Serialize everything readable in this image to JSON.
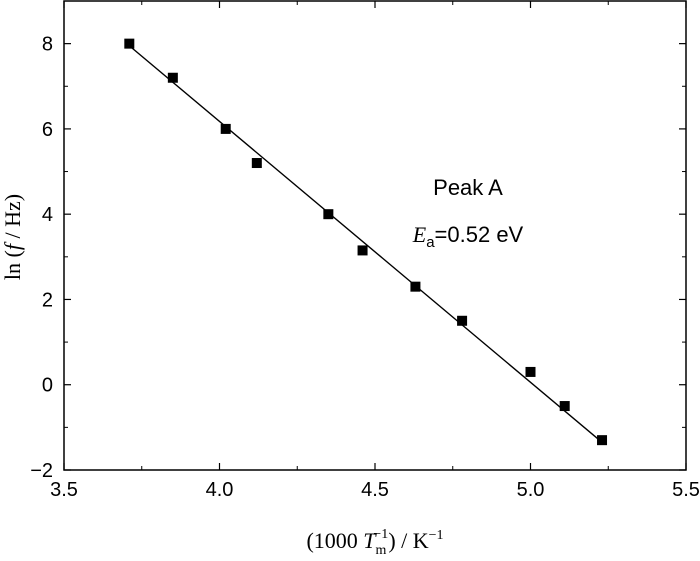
{
  "chart_data": {
    "type": "scatter",
    "xlabel": {
      "pre": "(1000 ",
      "var": "T",
      "sub": "m",
      "sup": "−1",
      "post": ") / K",
      "post_sup": "−1"
    },
    "ylabel": {
      "pre": "ln (",
      "var": "f",
      "post": " / Hz)"
    },
    "xlim": [
      3.5,
      5.5
    ],
    "ylim": [
      -2,
      9
    ],
    "xticks": [
      3.5,
      4.0,
      4.5,
      5.0,
      5.5
    ],
    "xtick_labels": [
      "3.5",
      "4.0",
      "4.5",
      "5.0",
      "5.5"
    ],
    "yticks": [
      -2,
      0,
      2,
      4,
      6,
      8
    ],
    "ytick_labels": [
      "−2",
      "0",
      "2",
      "4",
      "6",
      "8"
    ],
    "grid": false,
    "series": [
      {
        "marker": "square",
        "color": "#000000",
        "x": [
          3.71,
          3.85,
          4.02,
          4.12,
          4.35,
          4.46,
          4.63,
          4.78,
          5.0,
          5.11,
          5.23
        ],
        "y": [
          8.0,
          7.2,
          6.0,
          5.2,
          4.0,
          3.15,
          2.3,
          1.5,
          0.3,
          -0.5,
          -1.3
        ]
      }
    ],
    "fit_line": {
      "x": [
        3.71,
        5.23
      ],
      "y": [
        7.95,
        -1.35
      ],
      "color": "#000000"
    },
    "annotations": {
      "peak": "Peak A",
      "ea_var": "E",
      "ea_sub": "a",
      "ea_value": "=0.52 eV"
    }
  }
}
